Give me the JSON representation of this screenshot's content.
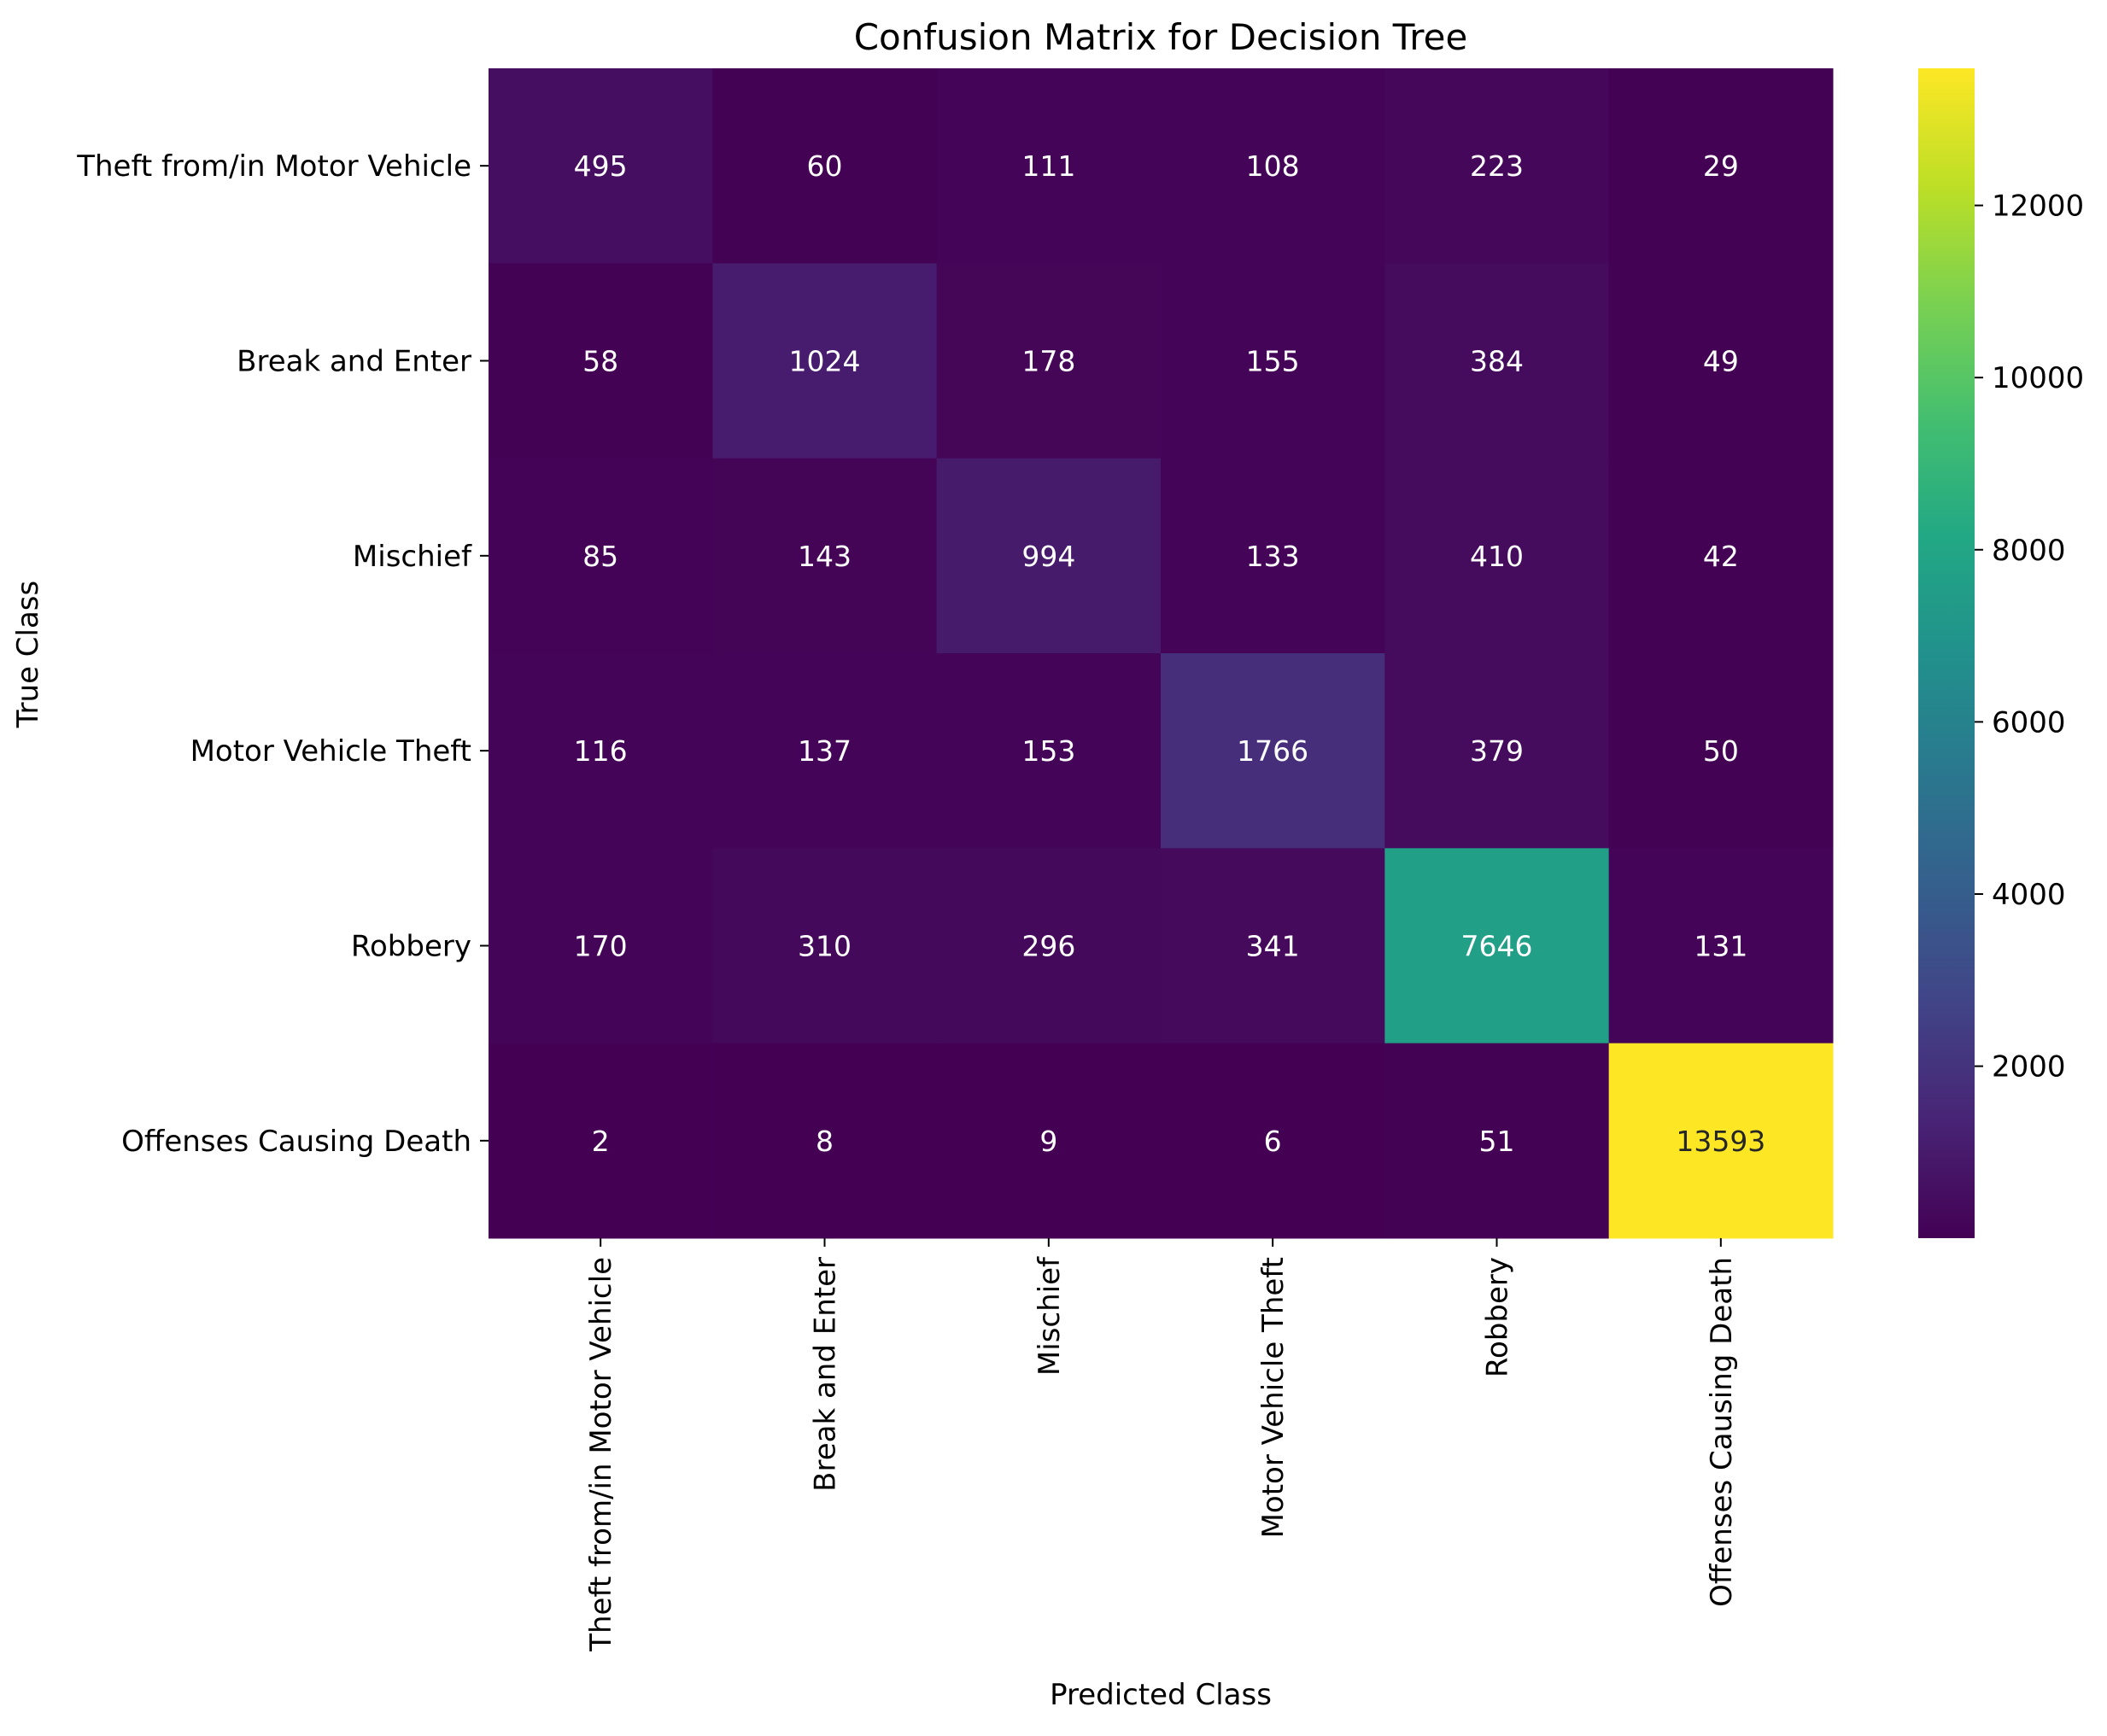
{
  "chart_data": {
    "type": "heatmap",
    "title": "Confusion Matrix for Decision Tree",
    "xlabel": "Predicted Class",
    "ylabel": "True Class",
    "x_categories": [
      "Theft from/in Motor Vehicle",
      "Break and Enter",
      "Mischief",
      "Motor Vehicle Theft",
      "Robbery",
      "Offenses Causing Death"
    ],
    "y_categories": [
      "Theft from/in Motor Vehicle",
      "Break and Enter",
      "Mischief",
      "Motor Vehicle Theft",
      "Robbery",
      "Offenses Causing Death"
    ],
    "values": [
      [
        495,
        60,
        111,
        108,
        223,
        29
      ],
      [
        58,
        1024,
        178,
        155,
        384,
        49
      ],
      [
        85,
        143,
        994,
        133,
        410,
        42
      ],
      [
        116,
        137,
        153,
        1766,
        379,
        50
      ],
      [
        170,
        310,
        296,
        341,
        7646,
        131
      ],
      [
        2,
        8,
        9,
        6,
        51,
        13593
      ]
    ],
    "colormap": "viridis",
    "colorbar": {
      "range": [
        2,
        13593
      ],
      "ticks": [
        2000,
        4000,
        6000,
        8000,
        10000,
        12000
      ],
      "tick_labels": [
        "2000",
        "4000",
        "6000",
        "8000",
        "10000",
        "12000"
      ]
    },
    "grid": false
  }
}
